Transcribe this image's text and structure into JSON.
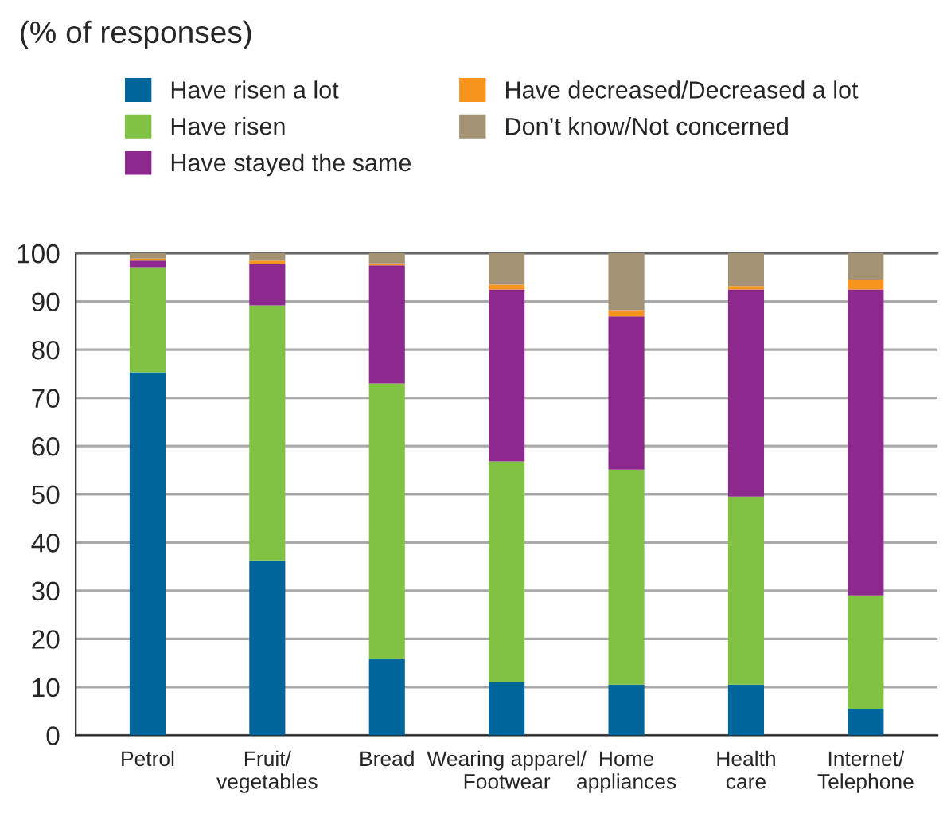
{
  "chart_data": {
    "type": "bar",
    "subtitle": "(% of responses)",
    "stacked": true,
    "categories": [
      "Petrol",
      "Fruit/\nvegetables",
      "Bread",
      "Wearing apparel/\nFootwear",
      "Home\nappliances",
      "Health\ncare",
      "Internet/\nTelephone"
    ],
    "series": [
      {
        "name": "Have risen a lot",
        "color": "#00659a",
        "values": [
          75.3,
          36.3,
          15.8,
          11.1,
          10.5,
          10.5,
          5.5
        ]
      },
      {
        "name": "Have risen",
        "color": "#80c242",
        "values": [
          21.8,
          52.9,
          57.2,
          45.7,
          44.6,
          39.0,
          23.5
        ]
      },
      {
        "name": "Have stayed the same",
        "color": "#8d288f",
        "values": [
          1.4,
          8.6,
          24.5,
          35.7,
          31.8,
          43.0,
          63.5
        ]
      },
      {
        "name": "Have decreased/Decreased a lot",
        "color": "#f7941d",
        "values": [
          0.4,
          0.7,
          0.4,
          1.0,
          1.3,
          0.7,
          2.0
        ]
      },
      {
        "name": "Don’t know/Not concerned",
        "color": "#a39374",
        "values": [
          1.1,
          1.5,
          2.1,
          6.5,
          11.8,
          6.8,
          5.5
        ]
      }
    ],
    "ylim": [
      0,
      100
    ],
    "yticks": [
      0,
      10,
      20,
      30,
      40,
      50,
      60,
      70,
      80,
      90,
      100
    ],
    "grid": "y",
    "legend": "top"
  }
}
